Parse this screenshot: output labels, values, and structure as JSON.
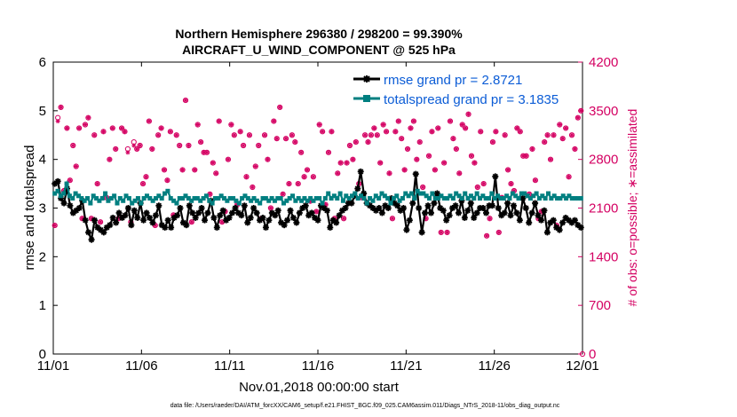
{
  "chart_data": {
    "type": "line",
    "title": [
      "Northern Hemisphere 296380 / 298200 = 99.390%",
      "AIRCRAFT_U_WIND_COMPONENT @ 525 hPa"
    ],
    "xlabel": "Nov.01,2018 00:00:00 start",
    "ylabel_left": "rmse and totalspread",
    "ylabel_right": "# of obs: o=possible; ∗=assimilated",
    "x_ticks": [
      "11/01",
      "11/06",
      "11/11",
      "11/16",
      "11/21",
      "11/26",
      "12/01"
    ],
    "x_range": [
      0,
      30
    ],
    "ylim_left": [
      0,
      6
    ],
    "yticks_left": [
      "0",
      "1",
      "2",
      "3",
      "4",
      "5",
      "6"
    ],
    "ylim_right": [
      0,
      4200
    ],
    "yticks_right": [
      "0",
      "700",
      "1400",
      "2100",
      "2800",
      "3500",
      "4200"
    ],
    "footer": "data file: /Users/raeder/DAI/ATM_forcXX/CAM6_setup/f.e21.FHIST_BGC.f09_025.CAM6assim.011/Diags_NTrS_2018-11/obs_diag_output.nc",
    "colors": {
      "rmse": "#000000",
      "spread": "#007f80",
      "obs": "#d40062"
    },
    "series": [
      {
        "name": "rmse grand pr = 2.8721",
        "color": "#000000",
        "values": [
          3.5,
          3.55,
          3.2,
          3.1,
          3.4,
          3.05,
          2.9,
          2.95,
          3.0,
          3.15,
          2.75,
          2.5,
          2.35,
          2.75,
          2.6,
          2.55,
          2.5,
          2.6,
          2.65,
          2.8,
          2.7,
          2.9,
          2.8,
          2.85,
          3.0,
          2.65,
          2.95,
          2.8,
          3.1,
          2.75,
          2.9,
          2.8,
          2.7,
          2.85,
          3.05,
          2.65,
          2.6,
          2.75,
          2.6,
          2.8,
          2.85,
          3.0,
          2.7,
          2.65,
          3.05,
          2.9,
          2.8,
          2.9,
          3.0,
          2.75,
          2.9,
          3.15,
          2.8,
          2.6,
          2.85,
          2.95,
          2.75,
          2.8,
          2.9,
          3.0,
          2.9,
          2.85,
          3.05,
          2.7,
          2.8,
          3.0,
          2.9,
          2.75,
          2.8,
          2.6,
          2.75,
          2.9,
          2.85,
          2.95,
          2.7,
          2.65,
          2.75,
          2.95,
          2.8,
          2.7,
          2.9,
          3.0,
          3.05,
          2.85,
          2.9,
          2.8,
          2.75,
          3.05,
          3.0,
          2.95,
          2.6,
          2.75,
          2.7,
          2.85,
          2.95,
          3.0,
          3.1,
          3.1,
          3.25,
          3.4,
          3.75,
          3.3,
          3.1,
          3.05,
          3.0,
          2.95,
          3.0,
          2.9,
          3.05,
          3.0,
          3.2,
          3.1,
          3.05,
          2.95,
          3.0,
          2.55,
          2.75,
          3.1,
          3.7,
          3.0,
          2.5,
          2.9,
          3.05,
          2.9,
          3.1,
          3.3,
          3.0,
          2.95,
          2.75,
          2.85,
          3.0,
          3.05,
          2.9,
          3.15,
          2.8,
          2.95,
          3.1,
          2.8,
          2.9,
          3.0,
          3.0,
          2.9,
          3.05,
          3.05,
          3.65,
          3.0,
          2.85,
          2.9,
          3.1,
          2.85,
          3.05,
          2.9,
          2.75,
          3.2,
          3.0,
          2.7,
          2.9,
          3.1,
          2.85,
          2.75,
          2.95,
          2.5,
          2.7,
          2.75,
          2.6,
          2.55,
          2.7,
          2.8,
          2.75,
          2.7,
          2.75,
          2.65,
          2.6
        ]
      },
      {
        "name": "totalspread grand pr = 3.1835",
        "color": "#007f80",
        "values": [
          3.3,
          3.35,
          3.25,
          3.3,
          3.5,
          3.25,
          3.2,
          3.3,
          3.25,
          3.2,
          3.15,
          3.2,
          3.1,
          3.25,
          3.2,
          3.15,
          3.2,
          3.3,
          3.15,
          3.2,
          3.25,
          3.1,
          3.2,
          3.15,
          3.25,
          3.2,
          3.1,
          3.15,
          3.2,
          3.1,
          3.2,
          3.25,
          3.2,
          3.15,
          3.2,
          3.25,
          3.2,
          3.3,
          3.35,
          3.2,
          3.15,
          3.1,
          3.2,
          3.2,
          3.25,
          3.2,
          3.15,
          3.2,
          3.2,
          3.15,
          3.2,
          3.25,
          3.15,
          3.1,
          3.2,
          3.2,
          3.25,
          3.2,
          3.15,
          3.2,
          3.2,
          3.15,
          3.1,
          3.2,
          3.25,
          3.2,
          3.15,
          3.2,
          3.15,
          3.1,
          3.2,
          3.2,
          3.15,
          3.2,
          3.15,
          3.2,
          3.2,
          3.1,
          3.15,
          3.2,
          3.25,
          3.15,
          3.2,
          3.15,
          3.2,
          3.15,
          3.2,
          3.15,
          3.2,
          3.2,
          3.1,
          3.2,
          3.3,
          3.2,
          3.25,
          3.2,
          3.3,
          3.15,
          3.25,
          3.2,
          3.25,
          3.3,
          3.2,
          3.25,
          3.2,
          3.1,
          3.2,
          3.15,
          3.25,
          3.2,
          3.3,
          3.25,
          3.2,
          3.1,
          3.2,
          3.25,
          3.15,
          3.2,
          3.3,
          3.25,
          3.3,
          3.2,
          3.35,
          3.3,
          3.3,
          3.25,
          3.2,
          3.3,
          3.2,
          3.2,
          3.25,
          3.2,
          3.2,
          3.25,
          3.2,
          3.3,
          3.25,
          3.2,
          3.3,
          3.2,
          3.25,
          3.2,
          3.3,
          3.2,
          3.25,
          3.2,
          3.2,
          3.3,
          3.2,
          3.25,
          3.2,
          3.2,
          3.25,
          3.2,
          3.3,
          3.25,
          3.2,
          3.3,
          3.3,
          3.25,
          3.2,
          3.25,
          3.3,
          3.2,
          3.25,
          3.2,
          3.3,
          3.2,
          3.25,
          3.2,
          3.2,
          3.25,
          3.2,
          3.25,
          3.2,
          3.2,
          3.2,
          3.2
        ]
      },
      {
        "name": "obs possible",
        "axis": "right",
        "marker": "circle",
        "values": [
          1850,
          3400,
          3550,
          2350,
          3250,
          2500,
          3000,
          2700,
          3250,
          1950,
          3300,
          3400,
          1950,
          3150,
          2450,
          1900,
          3200,
          2250,
          2800,
          3250,
          2950,
          1950,
          3250,
          3200,
          2950,
          1900,
          3050,
          2950,
          3000,
          2450,
          2550,
          3350,
          2950,
          1850,
          3150,
          3250,
          2650,
          2500,
          3200,
          2000,
          3150,
          3000,
          2650,
          3650,
          3000,
          1900,
          2650,
          3300,
          3050,
          2900,
          2900,
          2300,
          2750,
          2600,
          3350,
          1900,
          2050,
          2800,
          3300,
          3150,
          2150,
          3200,
          3000,
          2550,
          3150,
          2400,
          2700,
          3000,
          1950,
          3150,
          2800,
          2100,
          3350,
          3100,
          3550,
          2300,
          3100,
          2450,
          3150,
          3050,
          2450,
          2900,
          2550,
          2650,
          2200,
          2550,
          2050,
          3300,
          3200,
          2150,
          2900,
          3200,
          1950,
          2600,
          2750,
          1950,
          2750,
          3000,
          2800,
          3050,
          2450,
          2250,
          3150,
          3050,
          3150,
          3250,
          3150,
          2750,
          3300,
          3200,
          2600,
          1950,
          3200,
          3350,
          3100,
          2650,
          2950,
          3250,
          3350,
          2800,
          3050,
          2400,
          1950,
          2850,
          3200,
          2650,
          3250,
          1750,
          2750,
          1750,
          3350,
          3100,
          2950,
          2600,
          3300,
          3250,
          3450,
          2850,
          2750,
          2400,
          3200,
          2450,
          1700,
          1950,
          3050,
          3200,
          1750,
          2250,
          3150,
          2650,
          2450,
          2350,
          3250,
          3200,
          2850,
          2850,
          2300,
          2950,
          2500,
          1950,
          2050,
          3050,
          3150,
          2800,
          3150,
          1850,
          3300,
          3100,
          3250,
          2550,
          3150,
          2950,
          3400,
          3500
        ]
      },
      {
        "name": "obs assimilated",
        "axis": "right",
        "marker": "asterisk",
        "values": [
          1850,
          3350,
          3550,
          2350,
          3250,
          2500,
          3000,
          2700,
          3250,
          1950,
          3300,
          3400,
          1950,
          3150,
          2450,
          1900,
          3200,
          2250,
          2800,
          3250,
          2950,
          1950,
          3250,
          3200,
          2900,
          1900,
          3000,
          2950,
          3000,
          2450,
          2550,
          3350,
          2950,
          1850,
          3150,
          3250,
          2650,
          2500,
          3200,
          2000,
          3150,
          3000,
          2650,
          3650,
          3000,
          1900,
          2650,
          3300,
          3050,
          2900,
          2900,
          2300,
          2750,
          2600,
          3350,
          1900,
          2050,
          2800,
          3300,
          3150,
          2150,
          3200,
          3000,
          2550,
          3150,
          2400,
          2700,
          3000,
          1950,
          3150,
          2800,
          2100,
          3350,
          3100,
          3550,
          2300,
          3100,
          2450,
          3150,
          3050,
          2450,
          2900,
          2550,
          2650,
          2200,
          2550,
          2050,
          3300,
          3200,
          2150,
          2900,
          3200,
          1950,
          2600,
          2750,
          1950,
          2750,
          3000,
          2800,
          3050,
          2450,
          2250,
          3150,
          3050,
          3150,
          3250,
          3150,
          2750,
          3300,
          3200,
          2600,
          1950,
          3200,
          3350,
          3100,
          2650,
          2950,
          3250,
          3350,
          2800,
          3050,
          2400,
          1950,
          2850,
          3200,
          2650,
          3250,
          1750,
          2750,
          1750,
          3350,
          3100,
          2950,
          2600,
          3300,
          3250,
          3450,
          2850,
          2750,
          2400,
          3200,
          2450,
          1700,
          1950,
          3050,
          3200,
          1750,
          2250,
          3150,
          2650,
          2450,
          2350,
          3250,
          3200,
          2850,
          2850,
          2300,
          2950,
          2500,
          1950,
          2050,
          3050,
          3150,
          2800,
          3150,
          1850,
          3300,
          3100,
          3250,
          2550,
          3150,
          2950,
          3400,
          3500
        ]
      }
    ],
    "legend_placement": "top-right"
  }
}
